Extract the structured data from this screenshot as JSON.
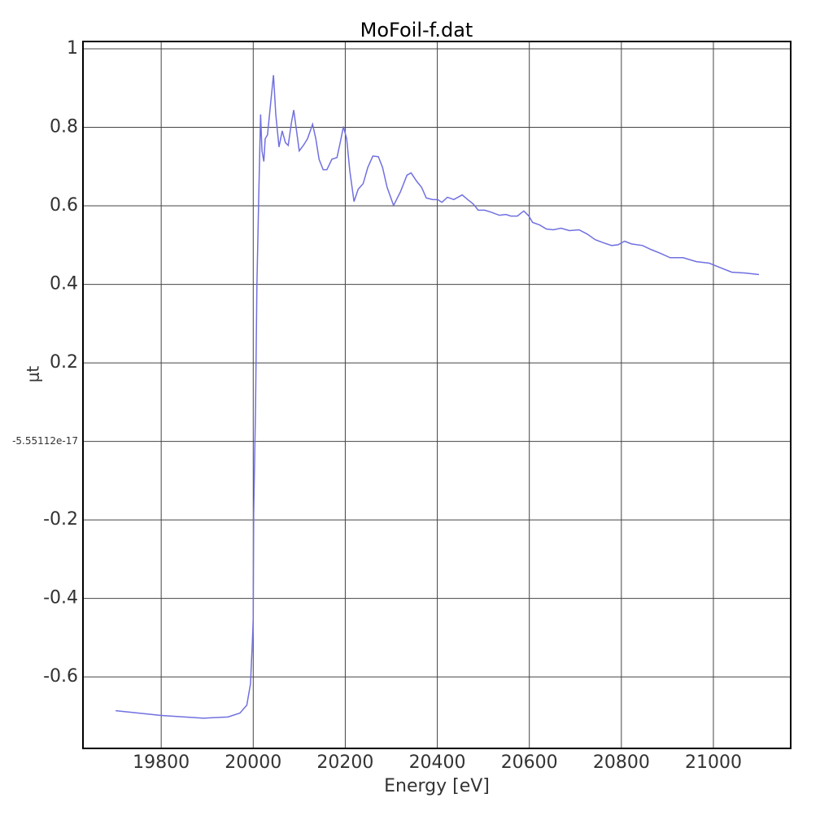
{
  "chart_data": {
    "type": "line",
    "title": "MoFoil-f.dat",
    "x_label": "Energy [eV]",
    "y_label": "μt",
    "color": "#7070e0",
    "grid": true,
    "xlim": [
      19630,
      21168
    ],
    "ylim": [
      -0.782,
      1.0187
    ],
    "xticks": [
      19800,
      20000,
      20200,
      20400,
      20600,
      20800,
      21000
    ],
    "yticks": [
      -0.6,
      -0.4,
      -0.2,
      {
        "value": -5.55112e-17,
        "label": "-5.55112e-17"
      },
      0.2,
      0.4,
      0.6,
      0.8,
      1
    ],
    "x": [
      19701,
      19800,
      19892,
      19945,
      19971,
      19986,
      19994,
      19998,
      20000,
      20001,
      20005,
      20008,
      20012,
      20016,
      20019,
      20023,
      20026,
      20031,
      20039,
      20044,
      20049,
      20056,
      20063,
      20070,
      20076,
      20083,
      20088,
      20094,
      20100,
      20109,
      20118,
      20129,
      20136,
      20143,
      20152,
      20160,
      20171,
      20182,
      20189,
      20196,
      20203,
      20210,
      20219,
      20228,
      20239,
      20249,
      20260,
      20272,
      20281,
      20291,
      20305,
      20320,
      20334,
      20343,
      20355,
      20366,
      20376,
      20390,
      20401,
      20410,
      20422,
      20436,
      20454,
      20466,
      20478,
      20489,
      20503,
      20517,
      20535,
      20549,
      20560,
      20574,
      20588,
      20599,
      20607,
      20623,
      20637,
      20652,
      20669,
      20687,
      20708,
      20726,
      20743,
      20761,
      20779,
      20793,
      20807,
      20822,
      20846,
      20864,
      20885,
      20906,
      20934,
      20963,
      20991,
      21012,
      21040,
      21069,
      21099
    ],
    "values": [
      -0.686,
      -0.698,
      -0.705,
      -0.702,
      -0.692,
      -0.672,
      -0.618,
      -0.514,
      -0.452,
      -0.182,
      0.087,
      0.398,
      0.626,
      0.833,
      0.74,
      0.713,
      0.771,
      0.781,
      0.875,
      0.933,
      0.833,
      0.75,
      0.791,
      0.761,
      0.754,
      0.812,
      0.844,
      0.792,
      0.74,
      0.754,
      0.771,
      0.808,
      0.771,
      0.719,
      0.692,
      0.692,
      0.719,
      0.723,
      0.761,
      0.802,
      0.771,
      0.688,
      0.611,
      0.642,
      0.657,
      0.698,
      0.727,
      0.725,
      0.698,
      0.647,
      0.601,
      0.636,
      0.678,
      0.684,
      0.663,
      0.647,
      0.62,
      0.616,
      0.616,
      0.609,
      0.622,
      0.616,
      0.628,
      0.616,
      0.605,
      0.589,
      0.589,
      0.584,
      0.576,
      0.578,
      0.574,
      0.574,
      0.587,
      0.574,
      0.558,
      0.551,
      0.541,
      0.539,
      0.543,
      0.537,
      0.539,
      0.528,
      0.514,
      0.506,
      0.499,
      0.501,
      0.51,
      0.503,
      0.499,
      0.489,
      0.479,
      0.468,
      0.468,
      0.458,
      0.454,
      0.444,
      0.431,
      0.429,
      0.425
    ]
  }
}
